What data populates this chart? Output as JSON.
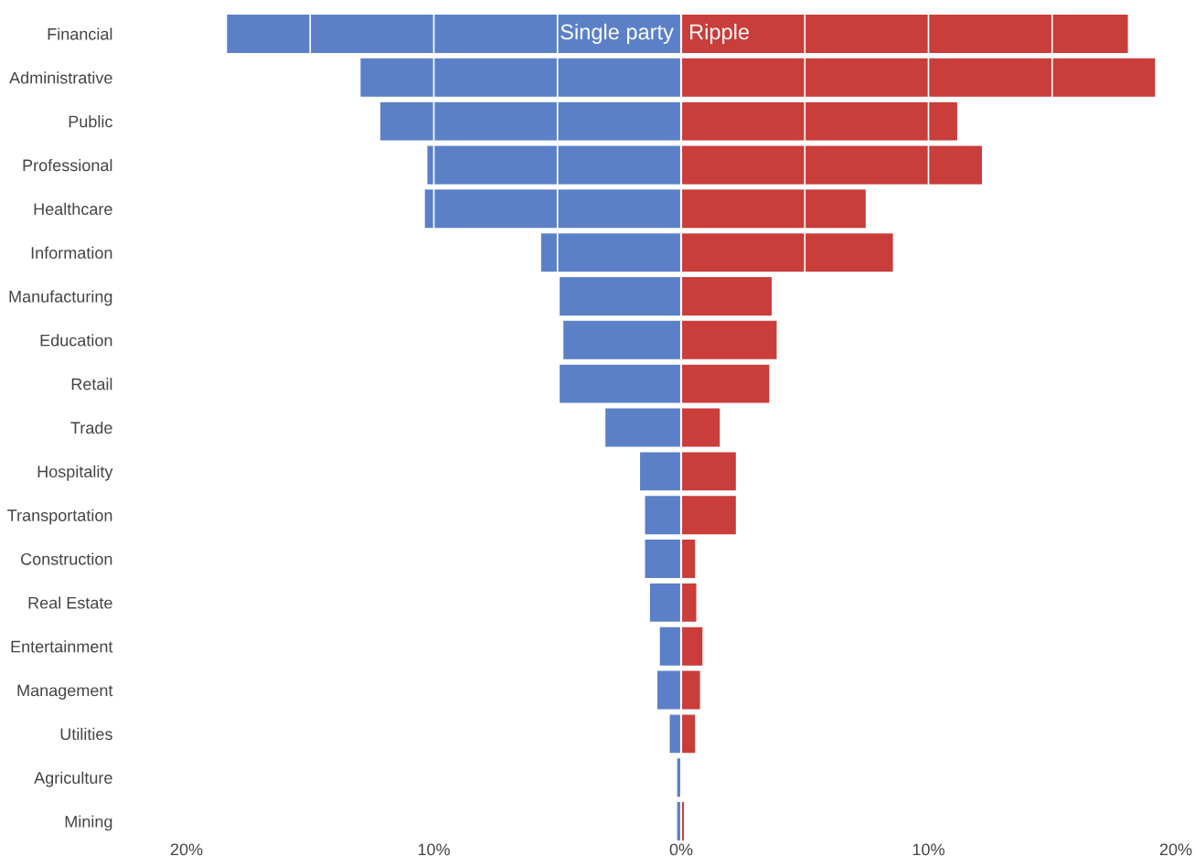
{
  "chart_data": {
    "type": "bar",
    "orientation": "horizontal",
    "stacked": true,
    "categories": [
      "Financial",
      "Administrative",
      "Public",
      "Professional",
      "Healthcare",
      "Information",
      "Manufacturing",
      "Education",
      "Retail",
      "Trade",
      "Hospitality",
      "Transportation",
      "Construction",
      "Real Estate",
      "Entertainment",
      "Management",
      "Utilities",
      "Agriculture",
      "Mining"
    ],
    "series": [
      {
        "name": "Single party",
        "color": "#5b80c8",
        "values": [
          -18.4,
          -13.0,
          -12.2,
          -10.3,
          -10.4,
          -5.7,
          -4.95,
          -4.8,
          -4.95,
          -3.1,
          -1.7,
          -1.5,
          -1.5,
          -1.3,
          -0.9,
          -1.0,
          -0.5,
          -0.2,
          -0.2
        ]
      },
      {
        "name": "Ripple",
        "color": "#c93d3a",
        "values": [
          18.1,
          19.2,
          11.2,
          12.2,
          7.5,
          8.6,
          3.7,
          3.9,
          3.6,
          1.6,
          2.25,
          2.25,
          0.6,
          0.65,
          0.9,
          0.8,
          0.6,
          null,
          0.15
        ]
      }
    ],
    "xlim": [
      -20,
      20
    ],
    "xticks": [
      {
        "value": -20,
        "label": "20%"
      },
      {
        "value": -15,
        "label": null
      },
      {
        "value": -10,
        "label": "10%"
      },
      {
        "value": -5,
        "label": null
      },
      {
        "value": 0,
        "label": "0%"
      },
      {
        "value": 5,
        "label": null
      },
      {
        "value": 10,
        "label": "10%"
      },
      {
        "value": 15,
        "label": null
      },
      {
        "value": 20,
        "label": "20%"
      }
    ],
    "grid": "x"
  }
}
